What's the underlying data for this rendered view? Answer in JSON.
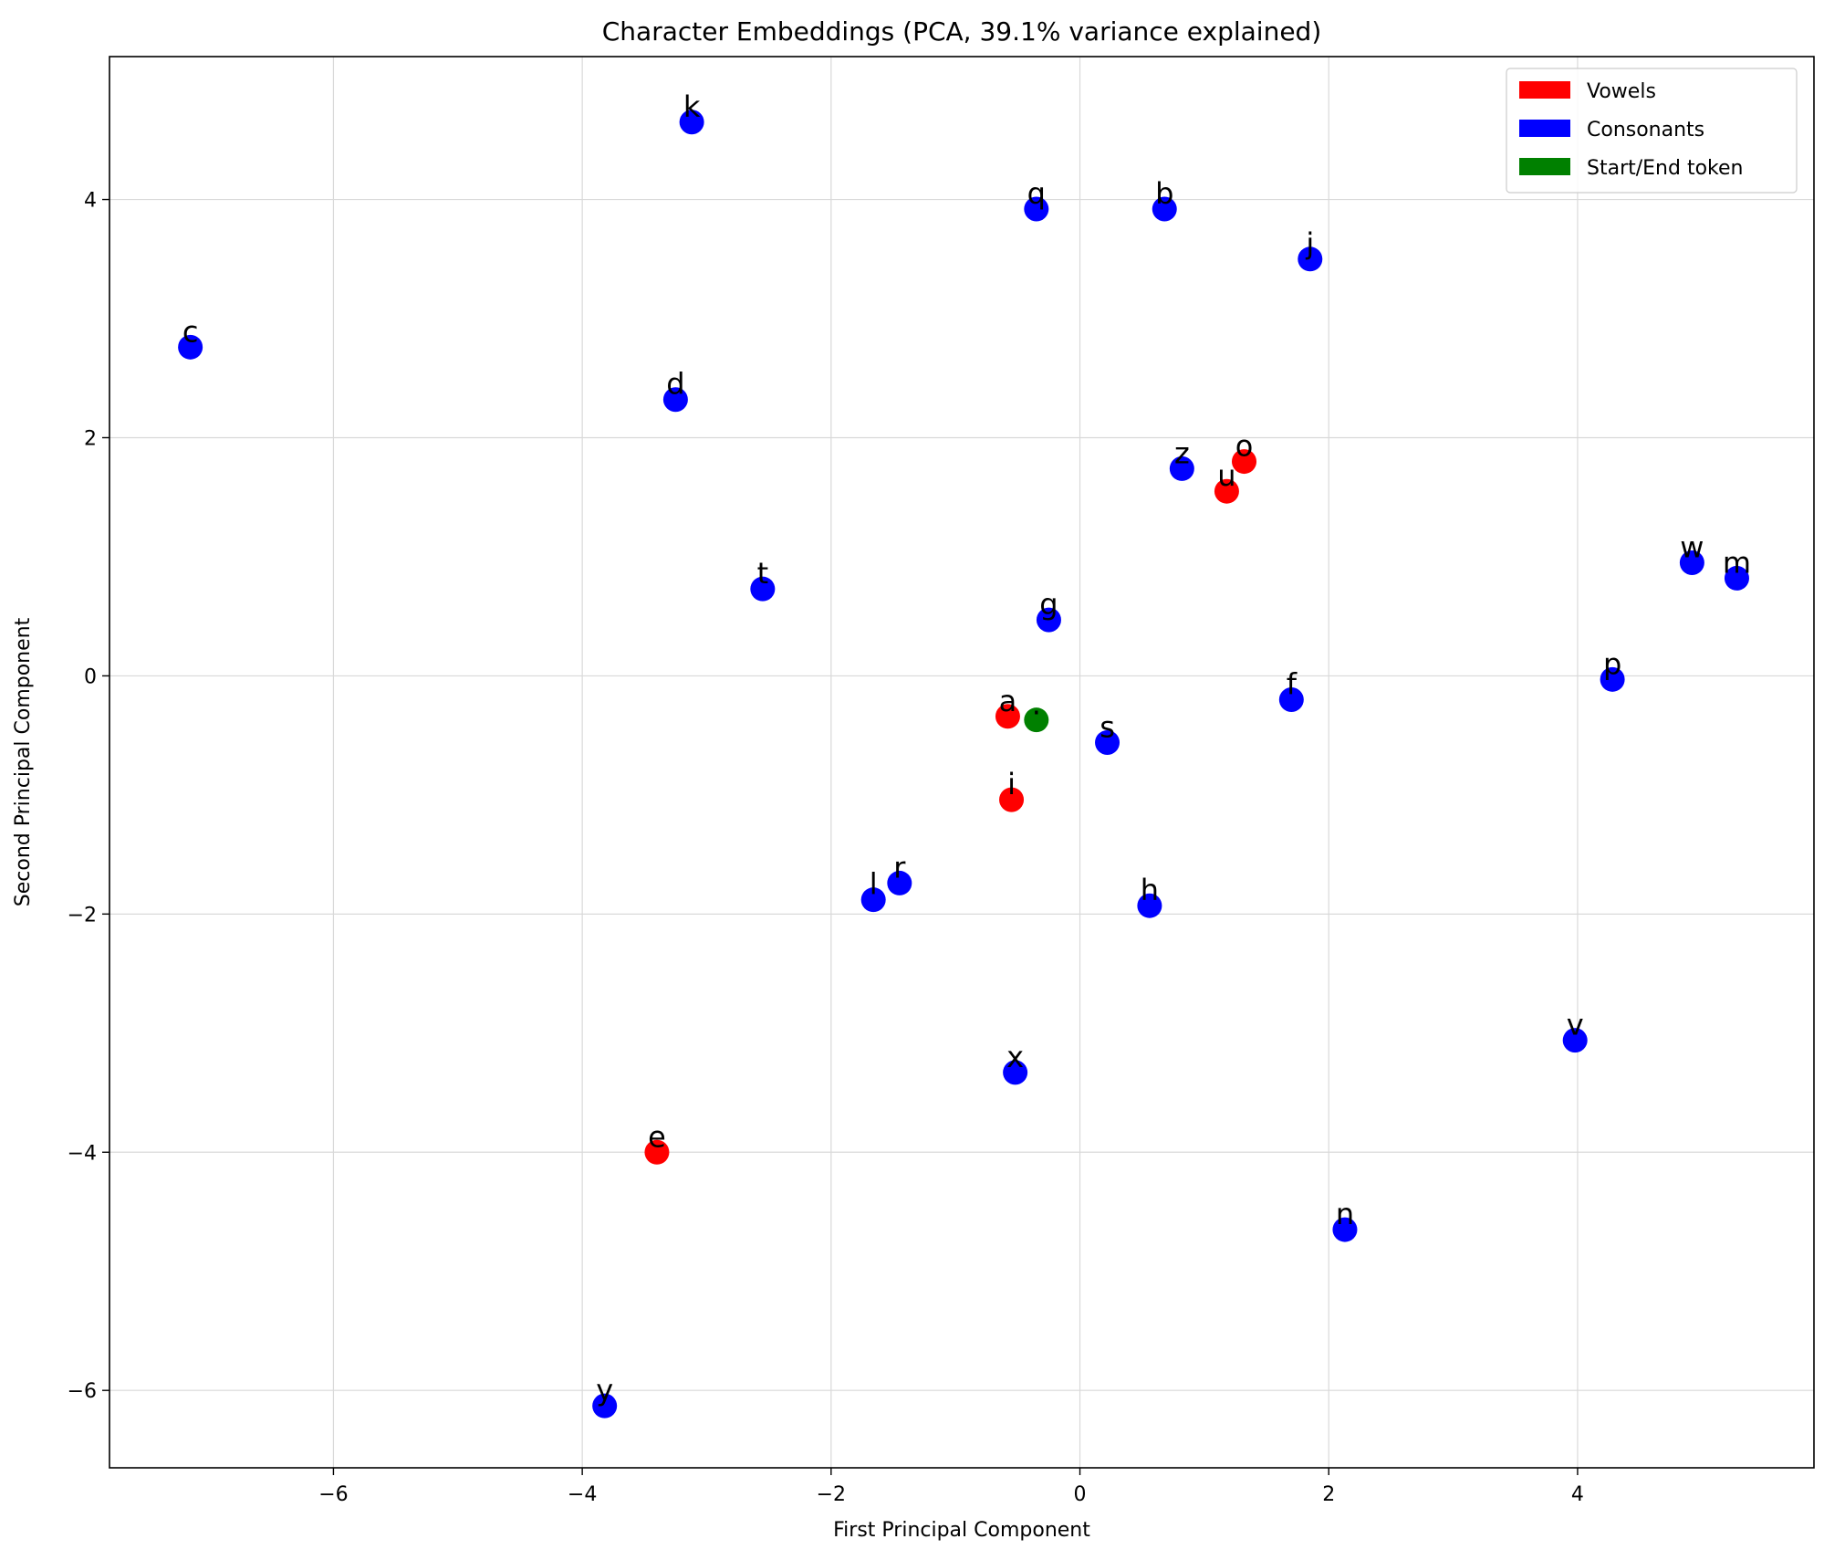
{
  "chart_data": {
    "type": "scatter",
    "title": "Character Embeddings (PCA, 39.1% variance explained)",
    "xlabel": "First Principal Component",
    "ylabel": "Second Principal Component",
    "xlim": [
      -7.8,
      5.9
    ],
    "ylim": [
      -6.65,
      5.2
    ],
    "xticks": [
      -6,
      -4,
      -2,
      0,
      2,
      4
    ],
    "yticks": [
      -6,
      -4,
      -2,
      0,
      2,
      4
    ],
    "xtick_labels": [
      "−6",
      "−4",
      "−2",
      "0",
      "2",
      "4"
    ],
    "ytick_labels": [
      "−6",
      "−4",
      "−2",
      "0",
      "2",
      "4"
    ],
    "grid": true,
    "legend_position": "top-right",
    "colors": {
      "vowel": "#ff0000",
      "consonant": "#0000ff",
      "token": "#008000"
    },
    "legend": [
      {
        "label": "Vowels",
        "color": "#ff0000"
      },
      {
        "label": "Consonants",
        "color": "#0000ff"
      },
      {
        "label": "Start/End token",
        "color": "#008000"
      }
    ],
    "points": [
      {
        "label": "k",
        "x": -3.12,
        "y": 4.65,
        "group": "consonant"
      },
      {
        "label": "q",
        "x": -0.35,
        "y": 3.92,
        "group": "consonant"
      },
      {
        "label": "b",
        "x": 0.68,
        "y": 3.92,
        "group": "consonant"
      },
      {
        "label": "j",
        "x": 1.85,
        "y": 3.5,
        "group": "consonant"
      },
      {
        "label": "c",
        "x": -7.15,
        "y": 2.76,
        "group": "consonant"
      },
      {
        "label": "d",
        "x": -3.25,
        "y": 2.32,
        "group": "consonant"
      },
      {
        "label": "z",
        "x": 0.82,
        "y": 1.74,
        "group": "consonant"
      },
      {
        "label": "o",
        "x": 1.32,
        "y": 1.8,
        "group": "vowel"
      },
      {
        "label": "u",
        "x": 1.18,
        "y": 1.55,
        "group": "vowel"
      },
      {
        "label": "w",
        "x": 4.92,
        "y": 0.95,
        "group": "consonant"
      },
      {
        "label": "m",
        "x": 5.28,
        "y": 0.82,
        "group": "consonant"
      },
      {
        "label": "t",
        "x": -2.55,
        "y": 0.73,
        "group": "consonant"
      },
      {
        "label": "g",
        "x": -0.25,
        "y": 0.47,
        "group": "consonant"
      },
      {
        "label": "p",
        "x": 4.28,
        "y": -0.03,
        "group": "consonant"
      },
      {
        "label": "f",
        "x": 1.7,
        "y": -0.2,
        "group": "consonant"
      },
      {
        "label": "a",
        "x": -0.58,
        "y": -0.34,
        "group": "vowel"
      },
      {
        "label": ".",
        "x": -0.35,
        "y": -0.37,
        "group": "token"
      },
      {
        "label": "s",
        "x": 0.22,
        "y": -0.56,
        "group": "consonant"
      },
      {
        "label": "i",
        "x": -0.55,
        "y": -1.04,
        "group": "vowel"
      },
      {
        "label": "l",
        "x": -1.66,
        "y": -1.88,
        "group": "consonant"
      },
      {
        "label": "r",
        "x": -1.45,
        "y": -1.74,
        "group": "consonant"
      },
      {
        "label": "h",
        "x": 0.56,
        "y": -1.93,
        "group": "consonant"
      },
      {
        "label": "v",
        "x": 3.98,
        "y": -3.06,
        "group": "consonant"
      },
      {
        "label": "x",
        "x": -0.52,
        "y": -3.33,
        "group": "consonant"
      },
      {
        "label": "e",
        "x": -3.4,
        "y": -4.0,
        "group": "vowel"
      },
      {
        "label": "n",
        "x": 2.13,
        "y": -4.65,
        "group": "consonant"
      },
      {
        "label": "y",
        "x": -3.82,
        "y": -6.13,
        "group": "consonant"
      }
    ]
  }
}
